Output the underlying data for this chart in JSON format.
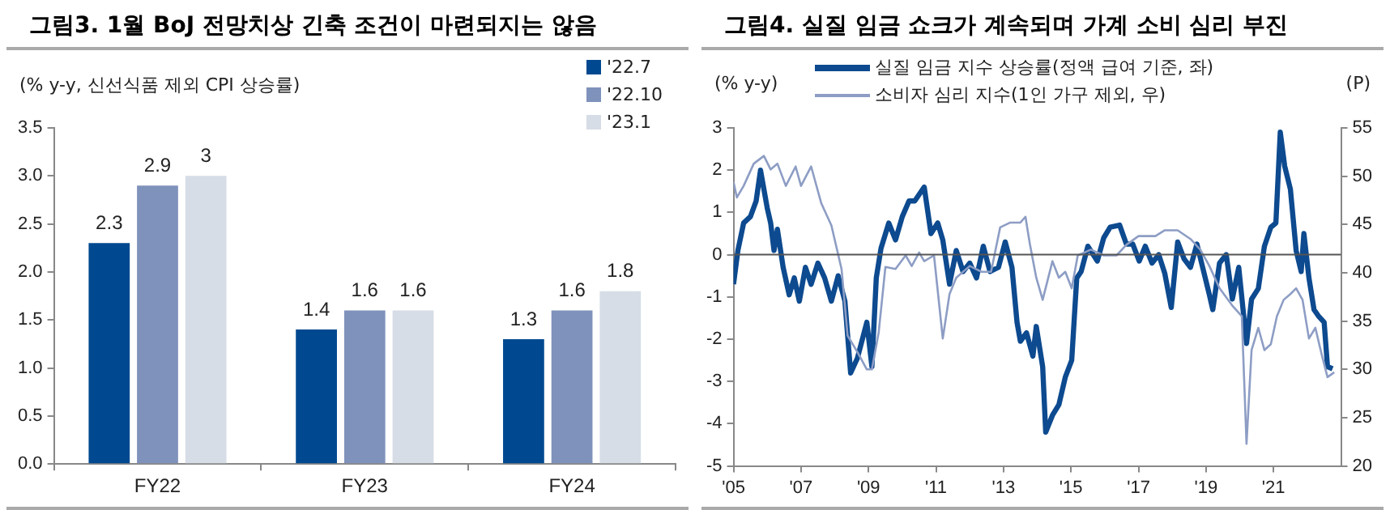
{
  "chart_data": [
    {
      "type": "bar",
      "title": "그림3. 1월 BoJ 전망치상 긴축 조건이 마련되지는 않음",
      "ylabel": "(% y-y, 신선식품 제외 CPI 상승률)",
      "categories": [
        "FY22",
        "FY23",
        "FY24"
      ],
      "series": [
        {
          "name": "'22.7",
          "color": "#004990",
          "values": [
            2.3,
            1.4,
            1.3
          ]
        },
        {
          "name": "'22.10",
          "color": "#7f92bb",
          "values": [
            2.9,
            1.6,
            1.6
          ]
        },
        {
          "name": "'23.1",
          "color": "#d6dde6",
          "values": [
            3,
            1.6,
            1.8
          ]
        }
      ],
      "ylim": [
        0,
        3.5
      ],
      "yticks": [
        {
          "value": 0,
          "label": "0.0"
        },
        0.5,
        {
          "value": 1,
          "label": "1.0"
        },
        1.5,
        {
          "value": 2,
          "label": "2.0"
        },
        2.5,
        {
          "value": 3,
          "label": "3.0"
        },
        3.5
      ],
      "data_labels": true,
      "legend": "top right",
      "grid": false
    },
    {
      "type": "line",
      "title": "그림4. 실질 임금 쇼크가 계속되며 가계 소비 심리 부진",
      "ylabel": "(% y-y)",
      "y2label": "(P)",
      "series": [
        {
          "name": "실질 임금 지수 상승률(정액 급여 기준, 좌)",
          "color": "#0d4a8f",
          "x": [
            2005.0,
            2005.13,
            2005.3,
            2005.5,
            2005.67,
            2005.8,
            2006.0,
            2006.1,
            2006.2,
            2006.3,
            2006.47,
            2006.65,
            2006.8,
            2006.95,
            2007.13,
            2007.3,
            2007.5,
            2007.7,
            2007.9,
            2008.1,
            2008.3,
            2008.47,
            2008.67,
            2008.95,
            2009.1,
            2009.23,
            2009.37,
            2009.6,
            2009.8,
            2010.0,
            2010.2,
            2010.37,
            2010.65,
            2010.85,
            2011.05,
            2011.2,
            2011.4,
            2011.6,
            2011.8,
            2012.0,
            2012.2,
            2012.4,
            2012.6,
            2012.85,
            2013.05,
            2013.25,
            2013.4,
            2013.5,
            2013.68,
            2013.87,
            2013.97,
            2014.16,
            2014.25,
            2014.45,
            2014.64,
            2014.83,
            2015.02,
            2015.17,
            2015.3,
            2015.5,
            2015.78,
            2015.97,
            2016.16,
            2016.44,
            2016.64,
            2016.83,
            2017.02,
            2017.2,
            2017.4,
            2017.6,
            2017.78,
            2017.97,
            2018.16,
            2018.35,
            2018.54,
            2018.73,
            2018.9,
            2019.1,
            2019.2,
            2019.4,
            2019.6,
            2019.78,
            2019.97,
            2020.2,
            2020.35,
            2020.55,
            2020.73,
            2020.92,
            2021.07,
            2021.2,
            2021.33,
            2021.5,
            2021.67,
            2021.82,
            2021.9,
            2022.05,
            2022.2,
            2022.33,
            2022.5,
            2022.6,
            2022.75
          ],
          "values": [
            -0.7,
            0.1,
            0.75,
            0.9,
            1.27,
            2.0,
            1.1,
            0.75,
            0.1,
            0.6,
            -0.3,
            -0.95,
            -0.55,
            -1.1,
            -0.3,
            -0.7,
            -0.2,
            -0.55,
            -1.1,
            -0.5,
            -1.1,
            -2.8,
            -2.45,
            -1.6,
            -2.65,
            -0.55,
            0.15,
            0.75,
            0.35,
            0.9,
            1.27,
            1.27,
            1.6,
            0.5,
            0.75,
            0.35,
            -0.7,
            0.1,
            -0.4,
            -0.2,
            -0.55,
            0.2,
            -0.4,
            -0.3,
            0.3,
            -0.3,
            -1.6,
            -2.05,
            -1.85,
            -2.4,
            -1.7,
            -2.65,
            -4.2,
            -3.8,
            -3.55,
            -2.9,
            -2.5,
            -0.55,
            -0.4,
            0.2,
            -0.15,
            0.4,
            0.65,
            0.7,
            0.25,
            0.25,
            -0.15,
            0.2,
            -0.2,
            0,
            -0.45,
            -1.25,
            0.3,
            -0.1,
            -0.3,
            0.25,
            -0.3,
            -0.95,
            -1.3,
            -0.2,
            0,
            -1.05,
            -0.3,
            -2.1,
            -1.05,
            -0.8,
            0.2,
            0.65,
            0.75,
            2.9,
            2.1,
            1.55,
            0.1,
            -0.4,
            0.5,
            -0.55,
            -1.3,
            -1.45,
            -1.6,
            -2.65,
            -2.7
          ]
        },
        {
          "name": "소비자 심리 지수(1인 가구 제외, 우)",
          "color": "#8d9dc4",
          "axis": "y2",
          "x": [
            2005.0,
            2005.1,
            2005.3,
            2005.6,
            2005.9,
            2006.1,
            2006.3,
            2006.55,
            2006.84,
            2007.0,
            2007.3,
            2007.6,
            2007.9,
            2008.2,
            2008.38,
            2008.67,
            2008.95,
            2009.1,
            2009.3,
            2009.5,
            2009.8,
            2010.1,
            2010.28,
            2010.5,
            2010.65,
            2010.94,
            2011.2,
            2011.4,
            2011.6,
            2012.0,
            2012.35,
            2012.63,
            2012.9,
            2013.2,
            2013.5,
            2013.65,
            2013.78,
            2013.97,
            2014.16,
            2014.45,
            2014.64,
            2014.83,
            2015.02,
            2015.2,
            2015.59,
            2015.97,
            2016.35,
            2016.64,
            2017.0,
            2017.5,
            2017.78,
            2018.16,
            2018.54,
            2018.83,
            2019.1,
            2019.4,
            2019.78,
            2020.06,
            2020.2,
            2020.35,
            2020.55,
            2020.73,
            2020.92,
            2021.1,
            2021.3,
            2021.5,
            2021.67,
            2021.86,
            2022.05,
            2022.24,
            2022.43,
            2022.6,
            2022.8
          ],
          "values": [
            49.4,
            47.8,
            49,
            51.3,
            52.1,
            50.7,
            51.3,
            49,
            51,
            49,
            51,
            47.2,
            44.9,
            40.4,
            33.5,
            31.8,
            30,
            30,
            33.8,
            40.6,
            40.4,
            41.8,
            40.7,
            42.1,
            41.2,
            41.8,
            33.2,
            37.8,
            39.5,
            40.7,
            40.1,
            40.1,
            44.7,
            45.2,
            45.2,
            45.8,
            43,
            39.5,
            37.2,
            41.2,
            39.5,
            40.1,
            38.4,
            41.8,
            42.4,
            41.8,
            41.8,
            42.9,
            43.8,
            43.8,
            44.4,
            44.4,
            43.5,
            42.4,
            40.7,
            38.4,
            36.6,
            35.5,
            22.3,
            32,
            34.3,
            32,
            32.6,
            35.5,
            37.2,
            37.8,
            38.4,
            37.2,
            33.2,
            34.3,
            31.5,
            29.2,
            29.7
          ]
        }
      ],
      "xlim": [
        2005,
        2023
      ],
      "xticks": [
        {
          "value": 2005,
          "label": "'05"
        },
        {
          "value": 2007,
          "label": "'07"
        },
        {
          "value": 2009,
          "label": "'09"
        },
        {
          "value": 2011,
          "label": "'11"
        },
        {
          "value": 2013,
          "label": "'13"
        },
        {
          "value": 2015,
          "label": "'15"
        },
        {
          "value": 2017,
          "label": "'17"
        },
        {
          "value": 2019,
          "label": "'19"
        },
        {
          "value": 2021,
          "label": "'21"
        }
      ],
      "ylim": [
        -5,
        3
      ],
      "yticks": [
        -5,
        -4,
        -3,
        -2,
        -1,
        0,
        1,
        2,
        3
      ],
      "y2lim": [
        20,
        55
      ],
      "y2ticks": [
        20,
        25,
        30,
        35,
        40,
        45,
        50,
        55
      ],
      "ref_lines": [
        {
          "axis": "y",
          "value": 0,
          "color": "#555555"
        }
      ],
      "legend": "top left",
      "marker": "none",
      "line_style": "solid",
      "grid": false
    }
  ]
}
